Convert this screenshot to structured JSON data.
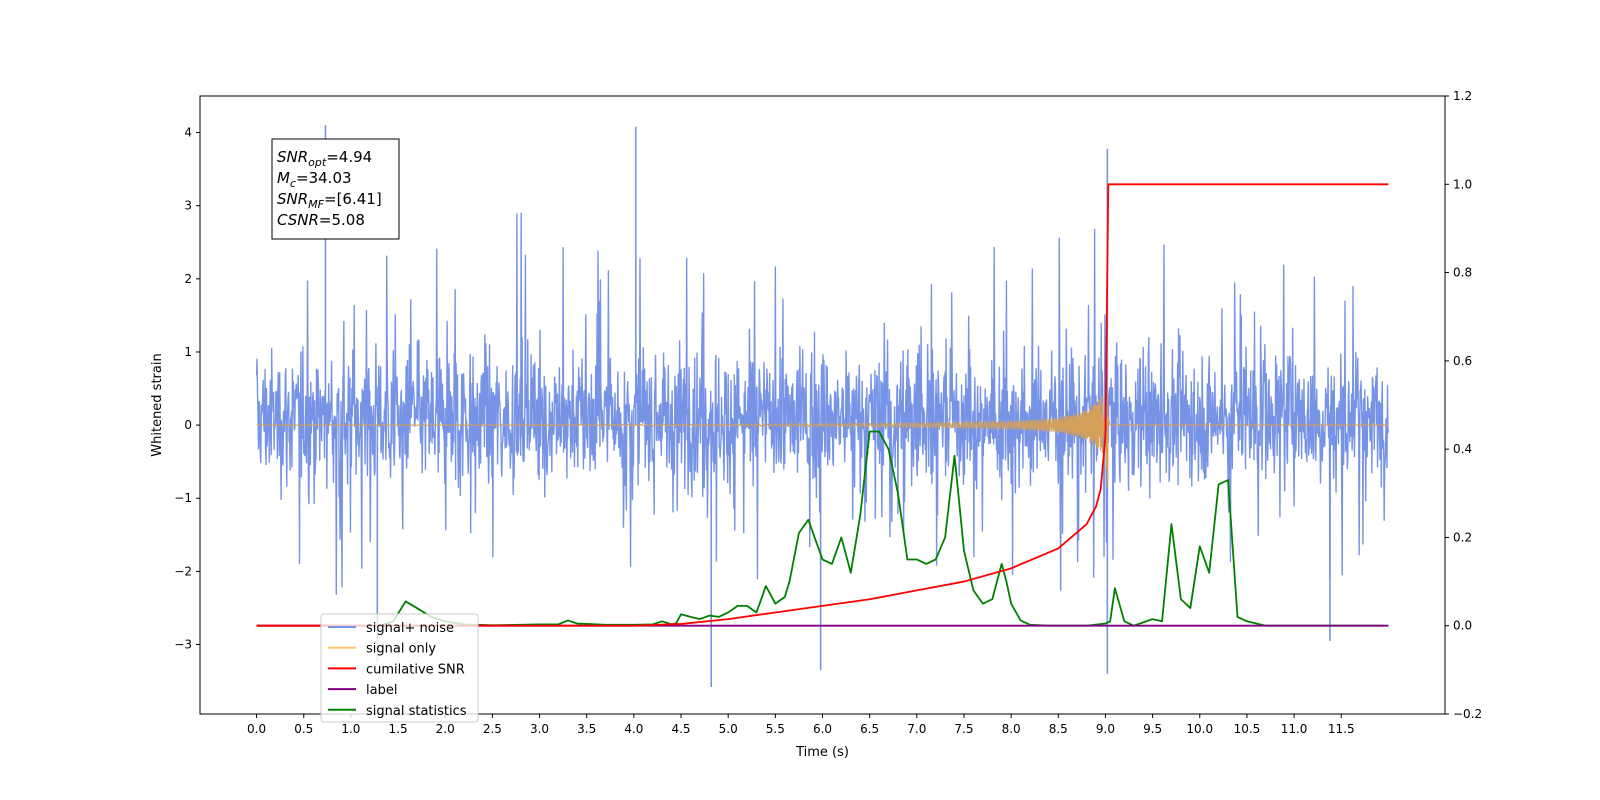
{
  "chart_data": {
    "type": "line",
    "title": "",
    "xlabel": "Time (s)",
    "ylabel": "Whitened strain",
    "xlim": [
      -0.6,
      12.6
    ],
    "ylim": [
      -3.95,
      4.5
    ],
    "y2lim": [
      -0.2,
      1.2
    ],
    "x_ticks": [
      0.0,
      0.5,
      1.0,
      1.5,
      2.0,
      2.5,
      3.0,
      3.5,
      4.0,
      4.5,
      5.0,
      5.5,
      6.0,
      6.5,
      7.0,
      7.5,
      8.0,
      8.5,
      9.0,
      9.5,
      10.0,
      10.5,
      11.0,
      11.5
    ],
    "x_tick_labels": [
      "0.0",
      "0.5",
      "1.0",
      "1.5",
      "2.0",
      "2.5",
      "3.0",
      "3.5",
      "4.0",
      "4.5",
      "5.0",
      "5.5",
      "6.0",
      "6.5",
      "7.0",
      "7.5",
      "8.0",
      "8.5",
      "9.0",
      "9.5",
      "10.0",
      "10.5",
      "11.0",
      "11.5"
    ],
    "y_ticks": [
      -3,
      -2,
      -1,
      0,
      1,
      2,
      3,
      4
    ],
    "y_tick_labels": [
      "−3",
      "−2",
      "−1",
      "0",
      "1",
      "2",
      "3",
      "4"
    ],
    "y2_ticks": [
      -0.2,
      0.0,
      0.2,
      0.4,
      0.6,
      0.8,
      1.0,
      1.2
    ],
    "y2_tick_labels": [
      "−0.2",
      "0.0",
      "0.2",
      "0.4",
      "0.6",
      "0.8",
      "1.0",
      "1.2"
    ],
    "grid": false,
    "legend_position": "lower-left",
    "series": [
      {
        "name": "signal+ noise",
        "axis": "left",
        "color": "#7793e6",
        "description": "dense noisy whitened strain trace spanning 0 to 12 s, roughly between -1.6 and 2.0 with spikes to 4.1 and -3.6",
        "x_range": [
          0.0,
          12.0
        ],
        "peak_max": 4.1,
        "peak_min": -3.58
      },
      {
        "name": "signal only",
        "axis": "left",
        "color": "#ffc766",
        "description": "chirp waveform near zero, growing to about ±1 at merger around 9.03 s then zero",
        "x": [
          0.0,
          5.0,
          6.0,
          7.0,
          8.0,
          8.5,
          8.8,
          9.0,
          9.03,
          9.05,
          12.0
        ],
        "envelope": [
          0.0,
          0.01,
          0.02,
          0.03,
          0.05,
          0.1,
          0.2,
          0.45,
          1.0,
          0.0,
          0.0
        ]
      },
      {
        "name": "cumilative SNR",
        "axis": "right",
        "color": "#ff0000",
        "x": [
          0.0,
          4.0,
          4.5,
          5.0,
          5.5,
          6.0,
          6.5,
          7.0,
          7.5,
          8.0,
          8.5,
          8.8,
          8.9,
          8.95,
          9.0,
          9.03,
          9.05,
          12.0
        ],
        "values": [
          0.0,
          0.0,
          0.004,
          0.015,
          0.03,
          0.045,
          0.06,
          0.08,
          0.1,
          0.13,
          0.175,
          0.23,
          0.27,
          0.31,
          0.43,
          1.0,
          1.0,
          1.0
        ]
      },
      {
        "name": "label",
        "axis": "right",
        "color": "#800080",
        "x": [
          0.0,
          12.0
        ],
        "values": [
          0.0,
          0.0
        ]
      },
      {
        "name": "signal statistics",
        "axis": "right",
        "color": "#008000",
        "x": [
          0.0,
          1.3,
          1.45,
          1.58,
          1.7,
          1.85,
          2.0,
          2.2,
          2.5,
          2.8,
          3.0,
          3.2,
          3.3,
          3.4,
          3.5,
          3.7,
          4.0,
          4.2,
          4.3,
          4.4,
          4.45,
          4.5,
          4.6,
          4.7,
          4.8,
          4.9,
          5.0,
          5.1,
          5.2,
          5.3,
          5.4,
          5.5,
          5.6,
          5.65,
          5.75,
          5.85,
          6.0,
          6.1,
          6.2,
          6.3,
          6.4,
          6.5,
          6.6,
          6.7,
          6.8,
          6.9,
          7.0,
          7.1,
          7.2,
          7.3,
          7.4,
          7.5,
          7.6,
          7.7,
          7.8,
          7.9,
          7.95,
          8.0,
          8.1,
          8.2,
          8.4,
          8.6,
          8.8,
          9.0,
          9.05,
          9.1,
          9.2,
          9.3,
          9.5,
          9.6,
          9.7,
          9.8,
          9.9,
          10.0,
          10.1,
          10.2,
          10.3,
          10.4,
          10.5,
          10.7,
          11.0,
          11.5,
          11.95
        ],
        "values": [
          0.0,
          0.0,
          0.01,
          0.055,
          0.04,
          0.02,
          0.01,
          0.003,
          0.001,
          0.002,
          0.003,
          0.003,
          0.012,
          0.005,
          0.004,
          0.002,
          0.002,
          0.003,
          0.01,
          0.003,
          0.006,
          0.026,
          0.02,
          0.015,
          0.023,
          0.02,
          0.03,
          0.045,
          0.045,
          0.03,
          0.09,
          0.05,
          0.065,
          0.1,
          0.21,
          0.24,
          0.15,
          0.14,
          0.2,
          0.12,
          0.25,
          0.44,
          0.44,
          0.4,
          0.3,
          0.15,
          0.15,
          0.14,
          0.15,
          0.2,
          0.385,
          0.17,
          0.08,
          0.05,
          0.06,
          0.14,
          0.1,
          0.05,
          0.012,
          0.002,
          0.0,
          0.0,
          0.0,
          0.005,
          0.01,
          0.085,
          0.01,
          0.0,
          0.015,
          0.01,
          0.23,
          0.06,
          0.04,
          0.18,
          0.12,
          0.32,
          0.33,
          0.02,
          0.01,
          0.0,
          0.0,
          0.0,
          0.0
        ]
      }
    ],
    "annotation_lines": [
      {
        "name": "SNR",
        "sub": "opt",
        "value": "=4.94"
      },
      {
        "name": "M",
        "sub": "c",
        "value": "=34.03"
      },
      {
        "name": "SNR",
        "sub": "MF",
        "value": "=[6.41]"
      },
      {
        "name": "CSNR",
        "sub": "",
        "value": "=5.08"
      }
    ]
  }
}
